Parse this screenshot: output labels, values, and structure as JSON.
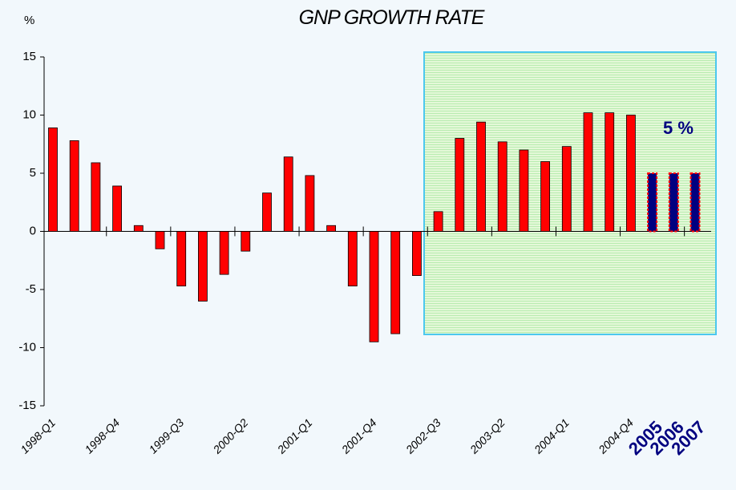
{
  "chart_data": {
    "type": "bar",
    "title": "GNP GROWTH RATE",
    "y_label": "%",
    "annotation": "5 %",
    "categories": [
      "1998-Q1",
      null,
      null,
      "1998-Q4",
      null,
      null,
      "1999-Q3",
      null,
      null,
      "2000-Q2",
      null,
      null,
      "2001-Q1",
      null,
      null,
      "2001-Q4",
      null,
      null,
      "2002-Q3",
      null,
      null,
      "2003-Q2",
      null,
      null,
      "2004-Q1",
      null,
      null,
      "2004-Q4",
      "2005",
      "2006",
      "2007"
    ],
    "values": [
      8.9,
      7.8,
      5.9,
      3.9,
      0.5,
      -1.5,
      -4.7,
      -6.0,
      -3.7,
      -1.7,
      3.3,
      6.4,
      4.8,
      0.5,
      -4.7,
      -9.5,
      -8.8,
      -3.8,
      1.7,
      8.0,
      9.4,
      7.7,
      7.0,
      6.0,
      7.3,
      10.2,
      10.2,
      10.0,
      5,
      5,
      5
    ],
    "colors": [
      "#ff0000",
      "#ff0000",
      "#ff0000",
      "#ff0000",
      "#ff0000",
      "#ff0000",
      "#ff0000",
      "#ff0000",
      "#ff0000",
      "#ff0000",
      "#ff0000",
      "#ff0000",
      "#ff0000",
      "#ff0000",
      "#ff0000",
      "#ff0000",
      "#ff0000",
      "#ff0000",
      "#ff0000",
      "#ff0000",
      "#ff0000",
      "#ff0000",
      "#ff0000",
      "#ff0000",
      "#ff0000",
      "#ff0000",
      "#ff0000",
      "#ff0000",
      "#000080",
      "#000080",
      "#000080"
    ],
    "ylim": [
      -15,
      15
    ],
    "yticks": [
      -15,
      -10,
      -5,
      0,
      5,
      10,
      15
    ]
  }
}
